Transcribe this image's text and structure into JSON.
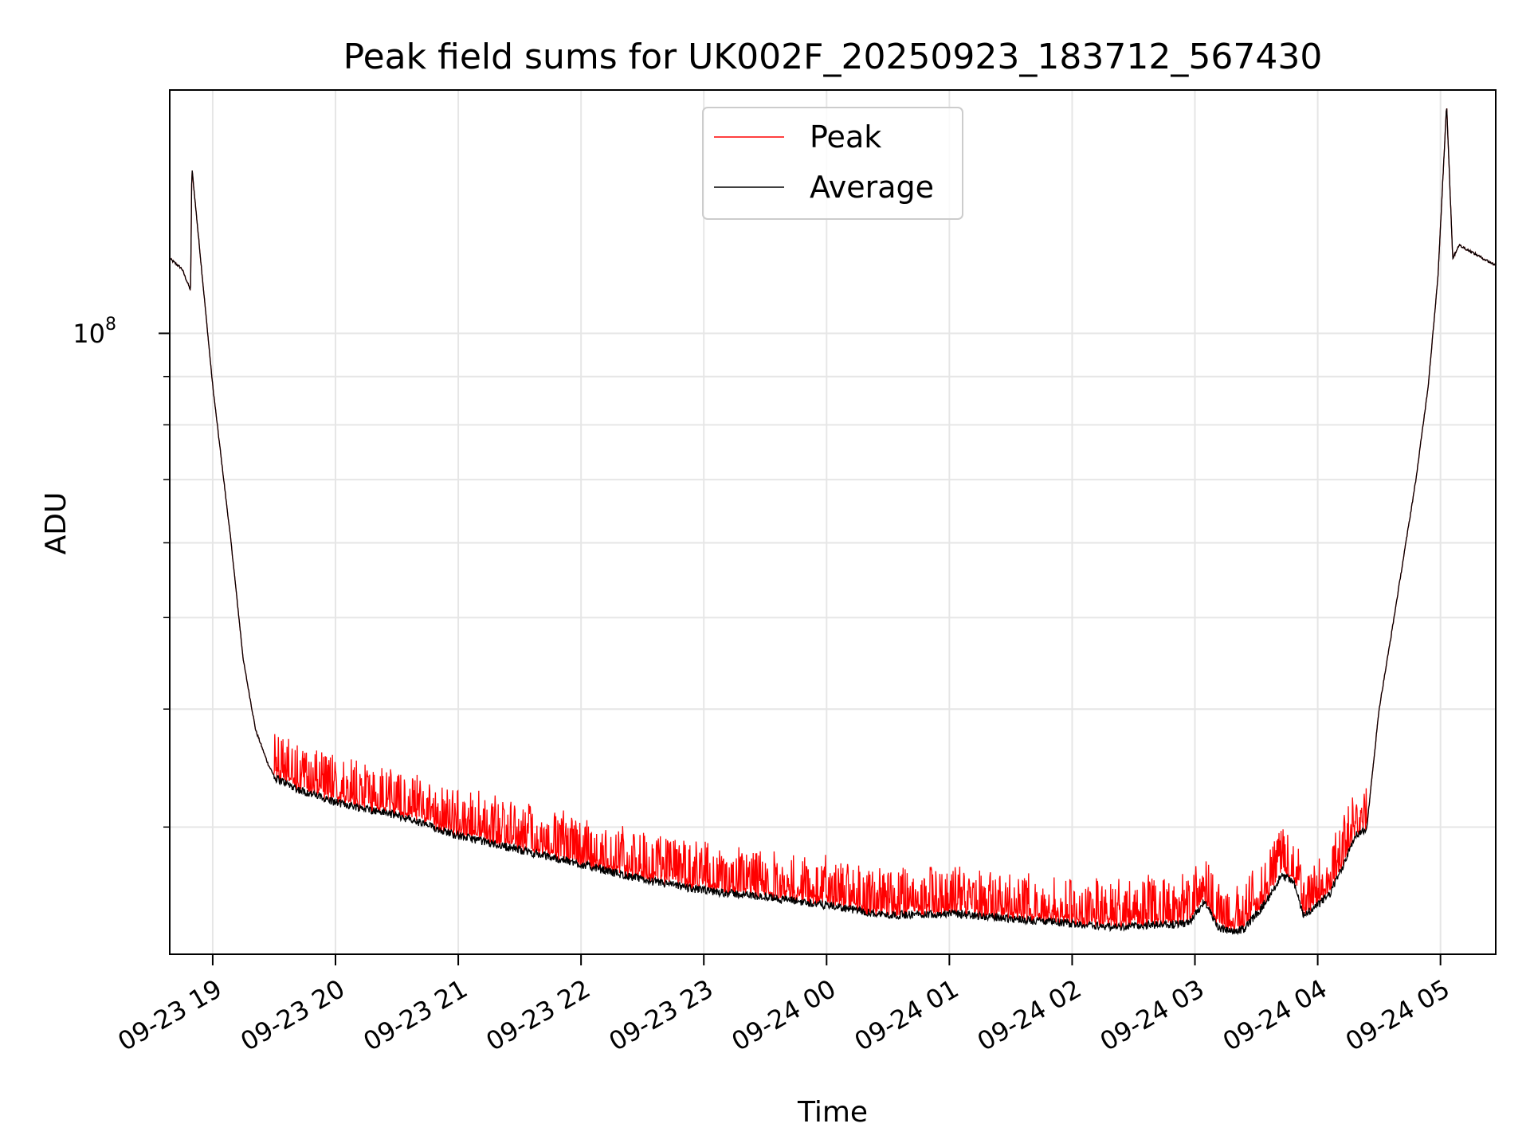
{
  "chart_data": {
    "type": "line",
    "title": "Peak field sums for UK002F_20250923_183712_567430",
    "xlabel": "Time",
    "ylabel": "ADU",
    "yscale": "log",
    "ylim": [
      22000000,
      181000000
    ],
    "y_major_tick": {
      "value": 100000000,
      "label_base": "10",
      "label_exp": "8"
    },
    "y_minor_ticks": [
      30000000,
      40000000,
      50000000,
      60000000,
      70000000,
      80000000,
      90000000
    ],
    "xlim_hours": [
      18.65,
      29.45
    ],
    "x_ticks": [
      {
        "hour": 19,
        "label": "09-23 19"
      },
      {
        "hour": 20,
        "label": "09-23 20"
      },
      {
        "hour": 21,
        "label": "09-23 21"
      },
      {
        "hour": 22,
        "label": "09-23 22"
      },
      {
        "hour": 23,
        "label": "09-23 23"
      },
      {
        "hour": 24,
        "label": "09-24 00"
      },
      {
        "hour": 25,
        "label": "09-24 01"
      },
      {
        "hour": 26,
        "label": "09-24 02"
      },
      {
        "hour": 27,
        "label": "09-24 03"
      },
      {
        "hour": 28,
        "label": "09-24 04"
      },
      {
        "hour": 29,
        "label": "09-24 05"
      }
    ],
    "grid": true,
    "legend_position": "upper-center",
    "series": [
      {
        "name": "Peak",
        "color": "#ff0000",
        "spiky": true
      },
      {
        "name": "Average",
        "color": "#000000",
        "spiky": false
      }
    ],
    "average_profile": [
      [
        18.65,
        120000000
      ],
      [
        18.75,
        117000000
      ],
      [
        18.82,
        111000000
      ],
      [
        18.83,
        150000000
      ],
      [
        19.0,
        88000000
      ],
      [
        19.15,
        60000000
      ],
      [
        19.25,
        45000000
      ],
      [
        19.35,
        38000000
      ],
      [
        19.45,
        35000000
      ],
      [
        19.5,
        34000000
      ],
      [
        19.7,
        33000000
      ],
      [
        20.0,
        32000000
      ],
      [
        20.5,
        31000000
      ],
      [
        21.0,
        29500000
      ],
      [
        21.5,
        28500000
      ],
      [
        22.0,
        27500000
      ],
      [
        22.5,
        26500000
      ],
      [
        23.0,
        25800000
      ],
      [
        23.5,
        25400000
      ],
      [
        24.0,
        24900000
      ],
      [
        24.4,
        24400000
      ],
      [
        24.5,
        24300000
      ],
      [
        25.0,
        24400000
      ],
      [
        25.5,
        24100000
      ],
      [
        26.0,
        23800000
      ],
      [
        26.35,
        23600000
      ],
      [
        26.6,
        23700000
      ],
      [
        26.95,
        23800000
      ],
      [
        27.08,
        25200000
      ],
      [
        27.18,
        23600000
      ],
      [
        27.3,
        23300000
      ],
      [
        27.4,
        23500000
      ],
      [
        27.55,
        24800000
      ],
      [
        27.7,
        26700000
      ],
      [
        27.8,
        26500000
      ],
      [
        27.88,
        24300000
      ],
      [
        28.0,
        24900000
      ],
      [
        28.1,
        25600000
      ],
      [
        28.2,
        27300000
      ],
      [
        28.3,
        29500000
      ],
      [
        28.4,
        30000000
      ],
      [
        28.5,
        40000000
      ],
      [
        28.6,
        48000000
      ],
      [
        28.7,
        58000000
      ],
      [
        28.8,
        70000000
      ],
      [
        28.9,
        88000000
      ],
      [
        28.98,
        115000000
      ],
      [
        29.05,
        175000000
      ],
      [
        29.1,
        120000000
      ],
      [
        29.15,
        124000000
      ],
      [
        29.25,
        122000000
      ],
      [
        29.45,
        118000000
      ]
    ]
  }
}
